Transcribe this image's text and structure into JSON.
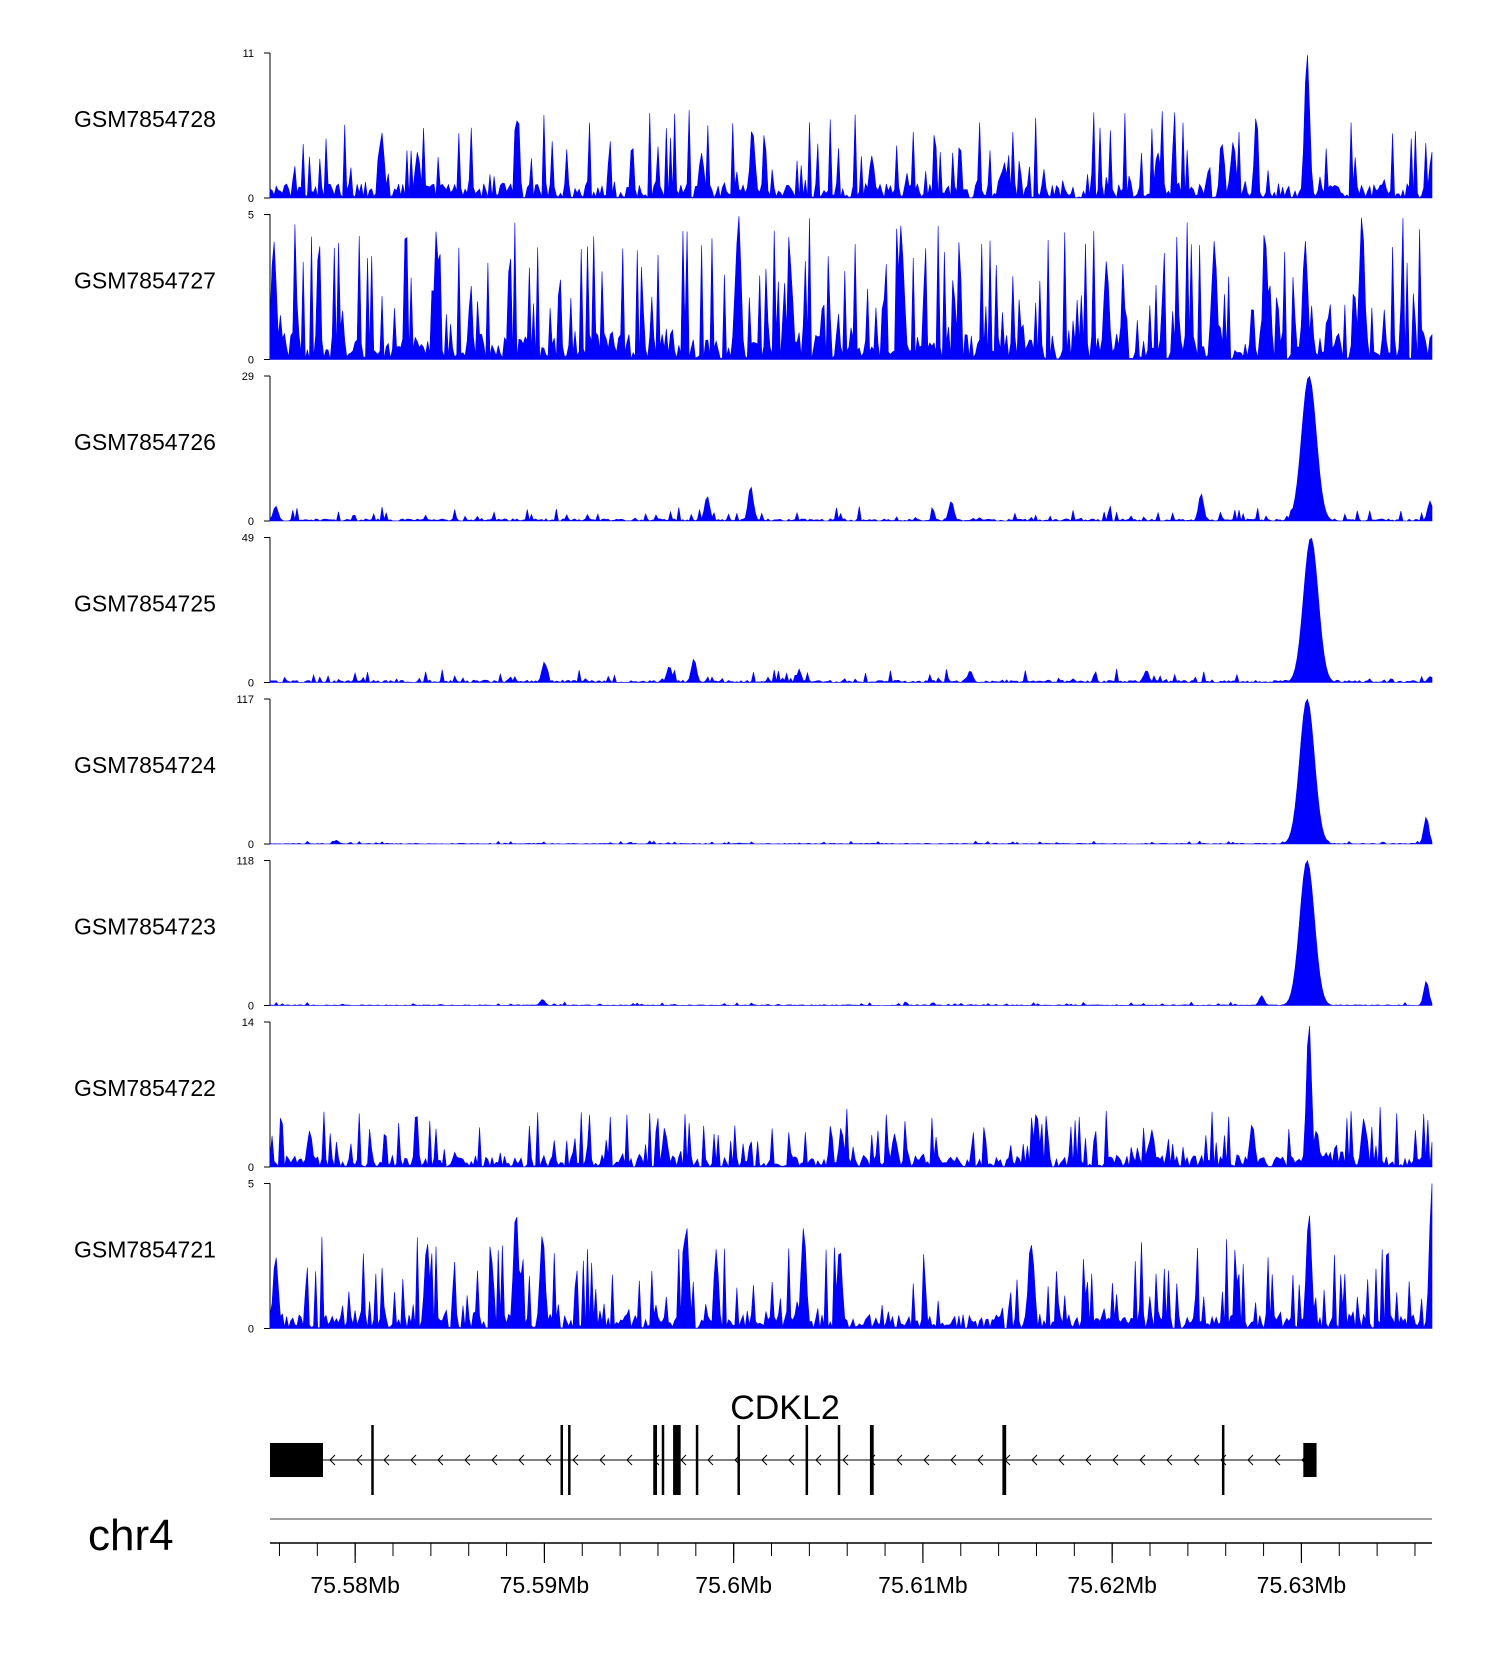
{
  "chart_data": {
    "type": "area",
    "chromosome": "chr4",
    "x_range_mb": [
      75.5755,
      75.6369
    ],
    "x_ticks_mb": [
      75.58,
      75.59,
      75.6,
      75.61,
      75.62,
      75.63
    ],
    "x_tick_labels": [
      "75.58Mb",
      "75.59Mb",
      "75.6Mb",
      "75.61Mb",
      "75.62Mb",
      "75.63Mb"
    ],
    "color": "#0000ff",
    "tracks": [
      {
        "name": "GSM7854728",
        "ymax": 11,
        "ymax_label": "11",
        "ymin_label": "0",
        "profile": "noisy-high",
        "peaks": [
          [
            75.6303,
            11
          ],
          [
            75.601,
            5
          ],
          [
            75.5814,
            5
          ],
          [
            75.5833,
            3.5
          ],
          [
            75.5983,
            3.4
          ],
          [
            75.6073,
            3.2
          ],
          [
            75.6264,
            4.3
          ],
          [
            75.6224,
            3.5
          ],
          [
            75.6143,
            2.7
          ],
          [
            75.6369,
            3.5
          ]
        ]
      },
      {
        "name": "GSM7854727",
        "ymax": 5,
        "ymax_label": "5",
        "ymin_label": "0",
        "profile": "noisy-max",
        "peaks": [
          [
            75.6332,
            5
          ],
          [
            75.5757,
            4.1
          ],
          [
            75.5843,
            4.1
          ],
          [
            75.6002,
            4.1
          ],
          [
            75.6254,
            4.1
          ],
          [
            75.6302,
            4.1
          ],
          [
            75.6281,
            4.0
          ],
          [
            75.6089,
            3.7
          ],
          [
            75.6197,
            3.4
          ],
          [
            75.603,
            3.2
          ]
        ]
      },
      {
        "name": "GSM7854726",
        "ymax": 29,
        "ymax_label": "29",
        "ymin_label": "0",
        "profile": "low",
        "peaks": [
          [
            75.6304,
            29
          ],
          [
            75.6009,
            7
          ],
          [
            75.5986,
            5
          ],
          [
            75.6115,
            4
          ],
          [
            75.6247,
            5.5
          ],
          [
            75.6368,
            4
          ],
          [
            75.5758,
            3
          ]
        ]
      },
      {
        "name": "GSM7854725",
        "ymax": 49,
        "ymax_label": "49",
        "ymin_label": "0",
        "profile": "low",
        "peaks": [
          [
            75.6305,
            49
          ],
          [
            75.5979,
            8
          ],
          [
            75.59,
            7
          ],
          [
            75.5966,
            5.5
          ],
          [
            75.6125,
            4
          ],
          [
            75.6218,
            4
          ],
          [
            75.6368,
            2
          ]
        ]
      },
      {
        "name": "GSM7854724",
        "ymax": 117,
        "ymax_label": "117",
        "ymin_label": "0",
        "profile": "flat",
        "peaks": [
          [
            75.6303,
            117
          ],
          [
            75.6366,
            22
          ],
          [
            75.579,
            3
          ]
        ]
      },
      {
        "name": "GSM7854723",
        "ymax": 118,
        "ymax_label": "118",
        "ymin_label": "0",
        "profile": "flat",
        "peaks": [
          [
            75.6303,
            118
          ],
          [
            75.6366,
            20
          ],
          [
            75.6279,
            8
          ],
          [
            75.5899,
            5
          ]
        ]
      },
      {
        "name": "GSM7854722",
        "ymax": 14,
        "ymax_label": "14",
        "ymin_label": "0",
        "profile": "noisy-mid",
        "peaks": [
          [
            75.6304,
            14
          ],
          [
            75.616,
            5.3
          ],
          [
            75.6333,
            4.7
          ],
          [
            75.5776,
            3.5
          ],
          [
            75.6057,
            3.4
          ],
          [
            75.6221,
            3.6
          ],
          [
            75.6274,
            4.2
          ],
          [
            75.6308,
            3.6
          ],
          [
            75.5964,
            3.1
          ],
          [
            75.6085,
            3.2
          ]
        ]
      },
      {
        "name": "GSM7854721",
        "ymax": 5,
        "ymax_label": "5",
        "ymin_label": "0",
        "profile": "noisy-high",
        "peaks": [
          [
            75.6369,
            5
          ],
          [
            75.5885,
            4.1
          ],
          [
            75.5975,
            3.6
          ],
          [
            75.6037,
            3.5
          ],
          [
            75.6304,
            4.0
          ],
          [
            75.5899,
            3.3
          ],
          [
            75.5838,
            3.0
          ],
          [
            75.6157,
            3.0
          ],
          [
            75.6056,
            2.8
          ],
          [
            75.5758,
            2.5
          ]
        ]
      }
    ],
    "gene": {
      "name": "CDKL2",
      "strand": "-",
      "start_mb": 75.5755,
      "end_mb": 75.6308,
      "exons_mb": [
        [
          75.5755,
          75.5783
        ],
        [
          75.58085,
          75.58095
        ],
        [
          75.59085,
          75.59095
        ],
        [
          75.59125,
          75.59135
        ],
        [
          75.59575,
          75.59595
        ],
        [
          75.5962,
          75.5963
        ],
        [
          75.5968,
          75.5972
        ],
        [
          75.598,
          75.5981
        ],
        [
          75.6002,
          75.6003
        ],
        [
          75.6038,
          75.6039
        ],
        [
          75.6055,
          75.6056
        ],
        [
          75.6072,
          75.6074
        ],
        [
          75.6142,
          75.6144
        ],
        [
          75.6258,
          75.6259
        ],
        [
          75.6301,
          75.6308
        ]
      ]
    }
  }
}
